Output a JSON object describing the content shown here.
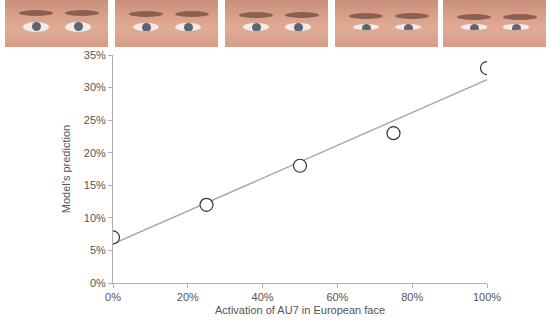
{
  "chart_data": {
    "type": "scatter",
    "x_label": "Activation of AU7 in European face",
    "y_label": "Model's prediction",
    "series": [
      {
        "type": "scatter",
        "marker": "circle",
        "color": "#333333",
        "x": [
          0,
          25,
          50,
          75,
          100
        ],
        "values": [
          7,
          12,
          18,
          23,
          33
        ]
      },
      {
        "type": "line",
        "line_style": "solid",
        "color": "#aaaaaa",
        "x": [
          0,
          100
        ],
        "values": [
          6,
          31.2
        ]
      }
    ],
    "xlim": [
      0,
      100
    ],
    "xticks": [
      {
        "value": 0,
        "label": "0%"
      },
      {
        "value": 20,
        "label": "20%"
      },
      {
        "value": 40,
        "label": "40%"
      },
      {
        "value": 60,
        "label": "60%"
      },
      {
        "value": 80,
        "label": "80%"
      },
      {
        "value": 100,
        "label": "100%"
      }
    ],
    "ylim": [
      0,
      35
    ],
    "yticks": [
      {
        "value": 0,
        "label": "0%"
      },
      {
        "value": 5,
        "label": "5%"
      },
      {
        "value": 10,
        "label": "10%"
      },
      {
        "value": 15,
        "label": "15%"
      },
      {
        "value": 20,
        "label": "20%"
      },
      {
        "value": 25,
        "label": "25%"
      },
      {
        "value": 30,
        "label": "30%"
      },
      {
        "value": 35,
        "label": "35%"
      }
    ],
    "grid": false
  }
}
